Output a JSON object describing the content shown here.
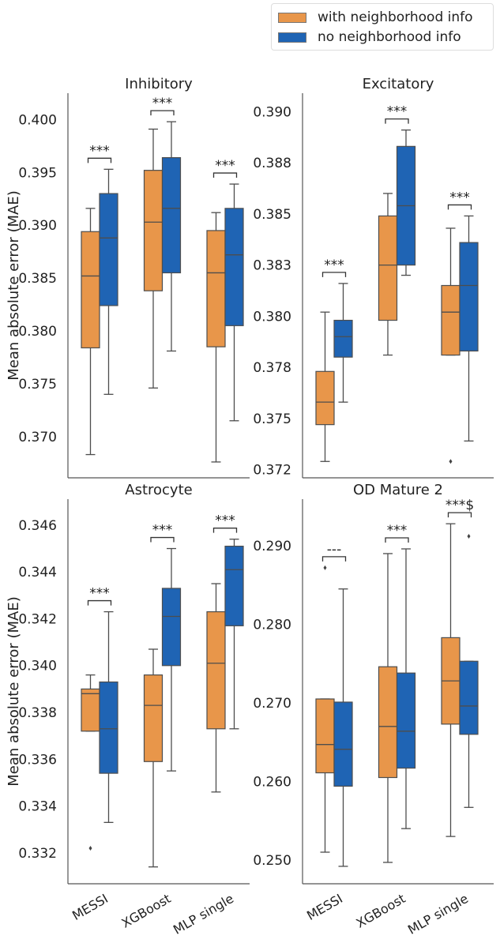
{
  "legend": {
    "items": [
      {
        "label": "with neighborhood info",
        "color": "#E8964A"
      },
      {
        "label": "no neighborhood info",
        "color": "#1F64B4"
      }
    ]
  },
  "chart_data": [
    {
      "type": "box",
      "title": "Inhibitory",
      "ylabel": "Mean absolute error (MAE)",
      "categories": [
        "MESSI",
        "XGBoost",
        "MLP single"
      ],
      "ylim": [
        0.3661,
        0.4025
      ],
      "ticks": [
        0.37,
        0.375,
        0.38,
        0.385,
        0.39,
        0.395,
        0.4
      ],
      "tick_labels": [
        "0.370",
        "0.375",
        "0.380",
        "0.385",
        "0.390",
        "0.395",
        "0.400"
      ],
      "annotations": [
        "***",
        "***",
        "***"
      ],
      "series": [
        {
          "name": "with neighborhood info",
          "boxes": [
            {
              "low": 0.3683,
              "q1": 0.3784,
              "median": 0.3852,
              "q3": 0.3894,
              "high": 0.3916,
              "outliers": []
            },
            {
              "low": 0.3746,
              "q1": 0.3838,
              "median": 0.3903,
              "q3": 0.3952,
              "high": 0.3991,
              "outliers": []
            },
            {
              "low": 0.3676,
              "q1": 0.3785,
              "median": 0.3855,
              "q3": 0.3895,
              "high": 0.3912,
              "outliers": []
            }
          ]
        },
        {
          "name": "no neighborhood info",
          "boxes": [
            {
              "low": 0.374,
              "q1": 0.3824,
              "median": 0.3888,
              "q3": 0.393,
              "high": 0.3953,
              "outliers": []
            },
            {
              "low": 0.3781,
              "q1": 0.3855,
              "median": 0.3916,
              "q3": 0.3964,
              "high": 0.3998,
              "outliers": []
            },
            {
              "low": 0.3715,
              "q1": 0.3805,
              "median": 0.3872,
              "q3": 0.3916,
              "high": 0.3939,
              "outliers": []
            }
          ]
        }
      ]
    },
    {
      "type": "box",
      "title": "Excitatory",
      "ylabel": "",
      "categories": [
        "MESSI",
        "XGBoost",
        "MLP single"
      ],
      "ylim": [
        0.3721,
        0.3909
      ],
      "ticks": [
        0.3725,
        0.375,
        0.3775,
        0.38,
        0.3825,
        0.385,
        0.3875,
        0.39
      ],
      "tick_labels": [
        "0.372",
        "0.375",
        "0.378",
        "0.380",
        "0.383",
        "0.385",
        "0.388",
        "0.390"
      ],
      "annotations": [
        "***",
        "***",
        "***"
      ],
      "series": [
        {
          "name": "with neighborhood info",
          "boxes": [
            {
              "low": 0.3729,
              "q1": 0.3747,
              "median": 0.3758,
              "q3": 0.3773,
              "high": 0.3802,
              "outliers": []
            },
            {
              "low": 0.3781,
              "q1": 0.3798,
              "median": 0.3825,
              "q3": 0.3849,
              "high": 0.386,
              "outliers": []
            },
            {
              "low": 0.3781,
              "q1": 0.3781,
              "median": 0.3802,
              "q3": 0.3815,
              "high": 0.3843,
              "outliers": [
                0.3729
              ]
            }
          ]
        },
        {
          "name": "no neighborhood info",
          "boxes": [
            {
              "low": 0.3758,
              "q1": 0.378,
              "median": 0.379,
              "q3": 0.3798,
              "high": 0.3816,
              "outliers": []
            },
            {
              "low": 0.382,
              "q1": 0.3825,
              "median": 0.3854,
              "q3": 0.3883,
              "high": 0.3891,
              "outliers": []
            },
            {
              "low": 0.3739,
              "q1": 0.3783,
              "median": 0.3815,
              "q3": 0.3836,
              "high": 0.3849,
              "outliers": []
            }
          ]
        }
      ]
    },
    {
      "type": "box",
      "title": "Astrocyte",
      "ylabel": "Mean absolute error (MAE)",
      "categories": [
        "MESSI",
        "XGBoost",
        "MLP single"
      ],
      "ylim": [
        0.33068,
        0.34711
      ],
      "ticks": [
        0.332,
        0.334,
        0.336,
        0.338,
        0.34,
        0.342,
        0.344,
        0.346
      ],
      "tick_labels": [
        "0.332",
        "0.334",
        "0.336",
        "0.338",
        "0.340",
        "0.342",
        "0.344",
        "0.346"
      ],
      "annotations": [
        "***",
        "***",
        "***"
      ],
      "series": [
        {
          "name": "with neighborhood info",
          "boxes": [
            {
              "low": 0.3372,
              "q1": 0.3372,
              "median": 0.3388,
              "q3": 0.339,
              "high": 0.3396,
              "outliers": [
                0.3322
              ]
            },
            {
              "low": 0.3314,
              "q1": 0.3359,
              "median": 0.3383,
              "q3": 0.3396,
              "high": 0.3407,
              "outliers": []
            },
            {
              "low": 0.3346,
              "q1": 0.3373,
              "median": 0.3401,
              "q3": 0.3423,
              "high": 0.3435,
              "outliers": []
            }
          ]
        },
        {
          "name": "no neighborhood info",
          "boxes": [
            {
              "low": 0.3333,
              "q1": 0.3354,
              "median": 0.3373,
              "q3": 0.3393,
              "high": 0.3423,
              "outliers": []
            },
            {
              "low": 0.3355,
              "q1": 0.34,
              "median": 0.3421,
              "q3": 0.3433,
              "high": 0.345,
              "outliers": []
            },
            {
              "low": 0.3373,
              "q1": 0.3417,
              "median": 0.3441,
              "q3": 0.3451,
              "high": 0.3454,
              "outliers": []
            }
          ]
        }
      ]
    },
    {
      "type": "box",
      "title": "OD Mature 2",
      "ylabel": "",
      "categories": [
        "MESSI",
        "XGBoost",
        "MLP single"
      ],
      "ylim": [
        0.24698,
        0.29593
      ],
      "ticks": [
        0.25,
        0.26,
        0.27,
        0.28,
        0.29
      ],
      "tick_labels": [
        "0.250",
        "0.260",
        "0.270",
        "0.280",
        "0.290"
      ],
      "annotations": [
        "---",
        "***",
        "***$"
      ],
      "series": [
        {
          "name": "with neighborhood info",
          "boxes": [
            {
              "low": 0.251,
              "q1": 0.2611,
              "median": 0.2647,
              "q3": 0.2705,
              "high": 0.2705,
              "outliers": [
                0.2872
              ]
            },
            {
              "low": 0.2497,
              "q1": 0.2605,
              "median": 0.267,
              "q3": 0.2746,
              "high": 0.289,
              "outliers": []
            },
            {
              "low": 0.253,
              "q1": 0.2673,
              "median": 0.2728,
              "q3": 0.2783,
              "high": 0.2928,
              "outliers": []
            }
          ]
        },
        {
          "name": "no neighborhood info",
          "boxes": [
            {
              "low": 0.2492,
              "q1": 0.2594,
              "median": 0.2641,
              "q3": 0.2701,
              "high": 0.2845,
              "outliers": []
            },
            {
              "low": 0.254,
              "q1": 0.2617,
              "median": 0.2664,
              "q3": 0.2738,
              "high": 0.2896,
              "outliers": []
            },
            {
              "low": 0.2567,
              "q1": 0.266,
              "median": 0.2696,
              "q3": 0.2753,
              "high": 0.2753,
              "outliers": [
                0.2912
              ]
            }
          ]
        }
      ]
    }
  ]
}
